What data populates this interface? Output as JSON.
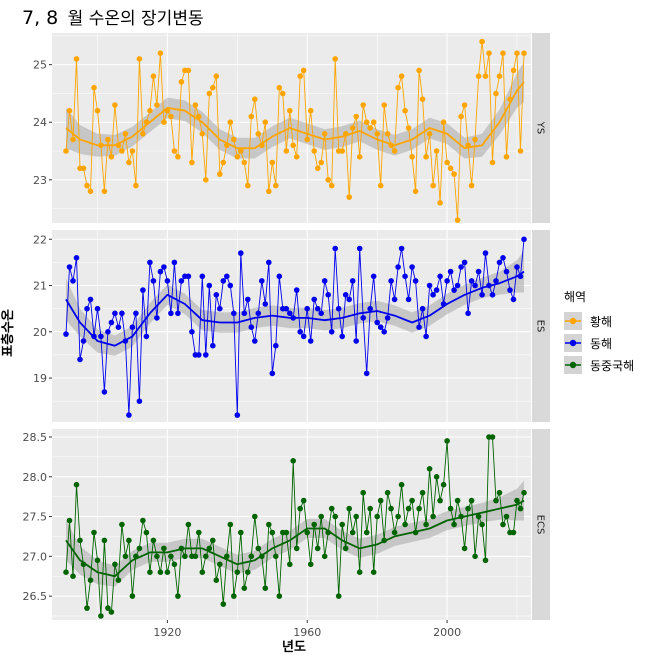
{
  "chart_data": {
    "type": "line",
    "title_prefix": "7, 8",
    "title_suffix": "월 수온의 장기변동",
    "xlabel": "년도",
    "ylabel": "표층수온",
    "x_ticks": [
      1920,
      1960,
      2000
    ],
    "xlim": [
      1887,
      2024
    ],
    "legend": {
      "title": "해역",
      "placement": "right",
      "entries": [
        "황해",
        "동해",
        "동중국해"
      ]
    },
    "panels": [
      {
        "strip": "YS",
        "color": "#FFA500",
        "ylim": [
          22.25,
          25.55
        ],
        "y_ticks": [
          23,
          24,
          25
        ],
        "years": [
          1891,
          1892,
          1893,
          1894,
          1895,
          1896,
          1897,
          1898,
          1899,
          1900,
          1901,
          1902,
          1903,
          1904,
          1905,
          1906,
          1907,
          1908,
          1909,
          1910,
          1911,
          1912,
          1913,
          1914,
          1915,
          1916,
          1917,
          1918,
          1919,
          1920,
          1921,
          1922,
          1923,
          1924,
          1925,
          1926,
          1927,
          1928,
          1929,
          1930,
          1931,
          1932,
          1933,
          1934,
          1935,
          1936,
          1937,
          1938,
          1939,
          1940,
          1941,
          1942,
          1943,
          1944,
          1945,
          1946,
          1947,
          1948,
          1949,
          1950,
          1951,
          1952,
          1953,
          1954,
          1955,
          1956,
          1957,
          1958,
          1959,
          1960,
          1961,
          1962,
          1963,
          1964,
          1965,
          1966,
          1967,
          1968,
          1969,
          1970,
          1971,
          1972,
          1973,
          1974,
          1975,
          1976,
          1977,
          1978,
          1979,
          1980,
          1981,
          1982,
          1983,
          1984,
          1985,
          1986,
          1987,
          1988,
          1989,
          1990,
          1991,
          1992,
          1993,
          1994,
          1995,
          1996,
          1997,
          1998,
          1999,
          2000,
          2001,
          2002,
          2003,
          2004,
          2005,
          2006,
          2007,
          2008,
          2009,
          2010,
          2011,
          2012,
          2013,
          2014,
          2015,
          2016,
          2017,
          2018,
          2019,
          2020,
          2021,
          2022
        ],
        "values": [
          23.5,
          24.2,
          23.7,
          25.1,
          23.2,
          23.2,
          22.9,
          22.8,
          24.6,
          24.2,
          23.6,
          22.8,
          23.7,
          23.4,
          24.3,
          23.6,
          23.5,
          23.8,
          23.3,
          23.5,
          22.9,
          25.1,
          23.8,
          24.0,
          24.2,
          24.8,
          24.3,
          25.2,
          24.0,
          24.2,
          24.1,
          23.5,
          23.4,
          24.7,
          24.9,
          24.9,
          23.3,
          24.3,
          24.1,
          23.8,
          23.0,
          24.5,
          24.6,
          24.8,
          23.1,
          23.3,
          23.6,
          24.0,
          23.7,
          23.4,
          23.5,
          23.3,
          22.9,
          24.1,
          24.4,
          23.8,
          23.6,
          24.0,
          22.8,
          23.3,
          22.9,
          24.6,
          24.5,
          23.5,
          24.2,
          23.6,
          23.4,
          24.8,
          24.9,
          23.7,
          24.2,
          23.5,
          23.2,
          23.3,
          23.8,
          23.0,
          22.9,
          25.1,
          23.5,
          23.5,
          23.8,
          22.7,
          23.9,
          24.1,
          23.4,
          24.3,
          24.0,
          23.9,
          24.0,
          23.8,
          22.9,
          24.3,
          23.8,
          23.6,
          23.5,
          24.6,
          24.8,
          24.2,
          23.9,
          23.4,
          22.8,
          24.9,
          24.4,
          23.4,
          23.8,
          22.9,
          23.5,
          22.6,
          24.0,
          23.3,
          23.2,
          23.1,
          22.3,
          24.1,
          24.3,
          23.6,
          22.9,
          23.7,
          24.8,
          25.4,
          24.8,
          25.2,
          23.3,
          24.5,
          24.8,
          25.2,
          23.4,
          24.4,
          24.9,
          25.2,
          23.5,
          25.2
        ],
        "smooth_x": [
          1891,
          1895,
          1900,
          1905,
          1910,
          1915,
          1920,
          1925,
          1930,
          1935,
          1940,
          1945,
          1950,
          1955,
          1960,
          1965,
          1970,
          1975,
          1980,
          1985,
          1990,
          1995,
          2000,
          2005,
          2010,
          2015,
          2020,
          2022
        ],
        "smooth_y": [
          23.9,
          23.7,
          23.6,
          23.6,
          23.75,
          24.0,
          24.25,
          24.2,
          24.0,
          23.7,
          23.55,
          23.55,
          23.75,
          23.9,
          23.8,
          23.7,
          23.75,
          23.85,
          23.7,
          23.6,
          23.7,
          23.9,
          23.8,
          23.55,
          23.6,
          24.0,
          24.55,
          24.7
        ],
        "band_halfwidth": [
          0.35,
          0.25,
          0.2,
          0.18,
          0.17,
          0.17,
          0.18,
          0.18,
          0.18,
          0.18,
          0.18,
          0.18,
          0.18,
          0.18,
          0.18,
          0.18,
          0.18,
          0.18,
          0.18,
          0.18,
          0.18,
          0.18,
          0.18,
          0.18,
          0.2,
          0.22,
          0.3,
          0.35
        ]
      },
      {
        "strip": "ES",
        "color": "#0000EE",
        "ylim": [
          18.05,
          22.2
        ],
        "y_ticks": [
          19,
          20,
          21,
          22
        ],
        "years": [
          1891,
          1892,
          1893,
          1894,
          1895,
          1896,
          1897,
          1898,
          1899,
          1900,
          1901,
          1902,
          1903,
          1904,
          1905,
          1906,
          1907,
          1908,
          1909,
          1910,
          1911,
          1912,
          1913,
          1914,
          1915,
          1916,
          1917,
          1918,
          1919,
          1920,
          1921,
          1922,
          1923,
          1924,
          1925,
          1926,
          1927,
          1928,
          1929,
          1930,
          1931,
          1932,
          1933,
          1934,
          1935,
          1936,
          1937,
          1938,
          1939,
          1940,
          1941,
          1942,
          1943,
          1944,
          1945,
          1946,
          1947,
          1948,
          1949,
          1950,
          1951,
          1952,
          1953,
          1954,
          1955,
          1956,
          1957,
          1958,
          1959,
          1960,
          1961,
          1962,
          1963,
          1964,
          1965,
          1966,
          1967,
          1968,
          1969,
          1970,
          1971,
          1972,
          1973,
          1974,
          1975,
          1976,
          1977,
          1978,
          1979,
          1980,
          1981,
          1982,
          1983,
          1984,
          1985,
          1986,
          1987,
          1988,
          1989,
          1990,
          1991,
          1992,
          1993,
          1994,
          1995,
          1996,
          1997,
          1998,
          1999,
          2000,
          2001,
          2002,
          2003,
          2004,
          2005,
          2006,
          2007,
          2008,
          2009,
          2010,
          2011,
          2012,
          2013,
          2014,
          2015,
          2016,
          2017,
          2018,
          2019,
          2020,
          2021,
          2022
        ],
        "values": [
          19.95,
          21.4,
          21.1,
          21.6,
          19.4,
          19.8,
          20.5,
          20.7,
          19.9,
          20.5,
          19.9,
          18.7,
          20.0,
          20.2,
          20.4,
          20.1,
          20.4,
          19.8,
          18.2,
          20.1,
          20.4,
          18.5,
          20.9,
          19.9,
          21.5,
          21.1,
          20.3,
          21.3,
          21.4,
          21.1,
          20.4,
          21.5,
          20.4,
          21.1,
          21.2,
          21.2,
          20.0,
          19.5,
          19.5,
          21.2,
          19.5,
          21.0,
          19.7,
          20.8,
          20.5,
          21.1,
          21.2,
          21.0,
          20.4,
          18.2,
          21.7,
          20.4,
          20.7,
          20.1,
          19.8,
          20.4,
          21.1,
          20.6,
          21.5,
          19.1,
          19.7,
          21.2,
          20.5,
          20.5,
          20.4,
          20.3,
          20.9,
          20.0,
          19.9,
          20.5,
          19.8,
          20.7,
          20.5,
          20.4,
          21.1,
          20.8,
          20.0,
          21.8,
          20.5,
          19.9,
          20.8,
          20.7,
          21.1,
          19.8,
          21.8,
          20.3,
          19.1,
          20.5,
          21.2,
          20.2,
          20.1,
          20.0,
          20.3,
          21.1,
          20.7,
          21.4,
          21.8,
          21.2,
          20.7,
          21.4,
          21.1,
          20.1,
          20.5,
          19.9,
          21.0,
          20.8,
          20.9,
          21.2,
          20.6,
          21.1,
          21.3,
          20.9,
          21.0,
          21.4,
          21.5,
          20.4,
          21.1,
          21.0,
          21.3,
          20.8,
          21.7,
          21.0,
          20.8,
          21.1,
          21.5,
          21.6,
          21.3,
          20.9,
          20.7,
          21.4,
          21.2,
          22.0
        ],
        "smooth_x": [
          1891,
          1895,
          1900,
          1905,
          1910,
          1915,
          1920,
          1925,
          1930,
          1935,
          1940,
          1945,
          1950,
          1955,
          1960,
          1965,
          1970,
          1975,
          1980,
          1985,
          1990,
          1995,
          2000,
          2005,
          2010,
          2015,
          2020,
          2022
        ],
        "smooth_y": [
          20.7,
          20.2,
          19.8,
          19.7,
          19.9,
          20.4,
          20.8,
          20.6,
          20.25,
          20.2,
          20.2,
          20.3,
          20.35,
          20.3,
          20.3,
          20.25,
          20.3,
          20.4,
          20.45,
          20.35,
          20.2,
          20.35,
          20.6,
          20.8,
          20.95,
          21.05,
          21.2,
          21.3
        ],
        "band_halfwidth": [
          0.45,
          0.3,
          0.25,
          0.22,
          0.22,
          0.22,
          0.22,
          0.22,
          0.22,
          0.22,
          0.22,
          0.22,
          0.22,
          0.22,
          0.22,
          0.22,
          0.22,
          0.22,
          0.22,
          0.22,
          0.22,
          0.22,
          0.22,
          0.22,
          0.22,
          0.25,
          0.35,
          0.45
        ]
      },
      {
        "strip": "ECS",
        "color": "#006400",
        "ylim": [
          26.2,
          28.6
        ],
        "y_ticks": [
          26.5,
          27.0,
          27.5,
          28.0,
          28.5
        ],
        "y_tick_labels": [
          "26.5",
          "27.0",
          "27.5",
          "28.0",
          "28.5"
        ],
        "years": [
          1891,
          1892,
          1893,
          1894,
          1895,
          1896,
          1897,
          1898,
          1899,
          1900,
          1901,
          1902,
          1903,
          1904,
          1905,
          1906,
          1907,
          1908,
          1909,
          1910,
          1911,
          1912,
          1913,
          1914,
          1915,
          1916,
          1917,
          1918,
          1919,
          1920,
          1921,
          1922,
          1923,
          1924,
          1925,
          1926,
          1927,
          1928,
          1929,
          1930,
          1931,
          1932,
          1933,
          1934,
          1935,
          1936,
          1937,
          1938,
          1939,
          1940,
          1941,
          1942,
          1943,
          1944,
          1945,
          1946,
          1947,
          1948,
          1949,
          1950,
          1951,
          1952,
          1953,
          1954,
          1955,
          1956,
          1957,
          1958,
          1959,
          1960,
          1961,
          1962,
          1963,
          1964,
          1965,
          1966,
          1967,
          1968,
          1969,
          1970,
          1971,
          1972,
          1973,
          1974,
          1975,
          1976,
          1977,
          1978,
          1979,
          1980,
          1981,
          1982,
          1983,
          1984,
          1985,
          1986,
          1987,
          1988,
          1989,
          1990,
          1991,
          1992,
          1993,
          1994,
          1995,
          1996,
          1997,
          1998,
          1999,
          2000,
          2001,
          2002,
          2003,
          2004,
          2005,
          2006,
          2007,
          2008,
          2009,
          2010,
          2011,
          2012,
          2013,
          2014,
          2015,
          2016,
          2017,
          2018,
          2019,
          2020,
          2021,
          2022
        ],
        "values": [
          26.8,
          27.45,
          26.75,
          27.9,
          27.2,
          26.9,
          26.35,
          26.7,
          27.3,
          26.95,
          26.25,
          27.2,
          26.35,
          26.3,
          26.9,
          26.7,
          27.4,
          27.0,
          27.2,
          26.5,
          27.0,
          27.1,
          27.45,
          27.3,
          26.8,
          27.2,
          27.0,
          26.8,
          27.1,
          26.8,
          27.0,
          26.9,
          26.5,
          27.1,
          27.0,
          27.4,
          27.0,
          27.0,
          27.3,
          26.8,
          27.0,
          27.1,
          27.2,
          26.7,
          26.9,
          26.4,
          27.0,
          27.4,
          26.5,
          26.8,
          27.3,
          26.6,
          26.8,
          27.0,
          27.5,
          27.1,
          27.0,
          26.6,
          27.4,
          27.3,
          27.0,
          26.5,
          27.3,
          27.3,
          26.9,
          28.2,
          27.1,
          27.6,
          27.7,
          27.3,
          26.9,
          27.4,
          27.1,
          27.5,
          27.0,
          27.3,
          27.6,
          27.5,
          26.5,
          27.4,
          27.1,
          27.6,
          27.3,
          27.5,
          26.8,
          27.8,
          27.3,
          27.6,
          26.8,
          27.5,
          27.7,
          27.2,
          27.8,
          27.6,
          27.3,
          27.5,
          27.9,
          27.4,
          27.6,
          27.7,
          27.3,
          27.6,
          27.8,
          27.4,
          28.1,
          27.5,
          28.0,
          27.7,
          27.9,
          28.45,
          27.6,
          27.4,
          27.7,
          27.5,
          27.1,
          27.6,
          27.7,
          27.0,
          27.5,
          27.4,
          26.95,
          28.5,
          28.5,
          27.7,
          27.8,
          27.4,
          27.5,
          27.3,
          27.3,
          27.7,
          27.6,
          27.8
        ],
        "smooth_x": [
          1891,
          1895,
          1900,
          1905,
          1910,
          1915,
          1920,
          1925,
          1930,
          1935,
          1940,
          1945,
          1950,
          1955,
          1960,
          1965,
          1970,
          1975,
          1980,
          1985,
          1990,
          1995,
          2000,
          2005,
          2010,
          2015,
          2020,
          2022
        ],
        "smooth_y": [
          27.2,
          26.95,
          26.8,
          26.75,
          26.95,
          27.05,
          27.05,
          27.1,
          27.1,
          27.0,
          26.9,
          26.95,
          27.1,
          27.2,
          27.35,
          27.35,
          27.2,
          27.1,
          27.15,
          27.25,
          27.3,
          27.35,
          27.45,
          27.5,
          27.55,
          27.6,
          27.65,
          27.7
        ],
        "band_halfwidth": [
          0.25,
          0.18,
          0.15,
          0.13,
          0.12,
          0.12,
          0.12,
          0.12,
          0.12,
          0.12,
          0.12,
          0.12,
          0.12,
          0.12,
          0.12,
          0.12,
          0.12,
          0.12,
          0.12,
          0.12,
          0.12,
          0.12,
          0.12,
          0.12,
          0.12,
          0.14,
          0.2,
          0.25
        ]
      }
    ]
  },
  "colors": {
    "panel_bg": "#EBEBEB",
    "grid": "#FFFFFF",
    "strip_bg": "#D9D9D9",
    "band": "#999999",
    "legend_key_bg": "#D4D4D4"
  }
}
